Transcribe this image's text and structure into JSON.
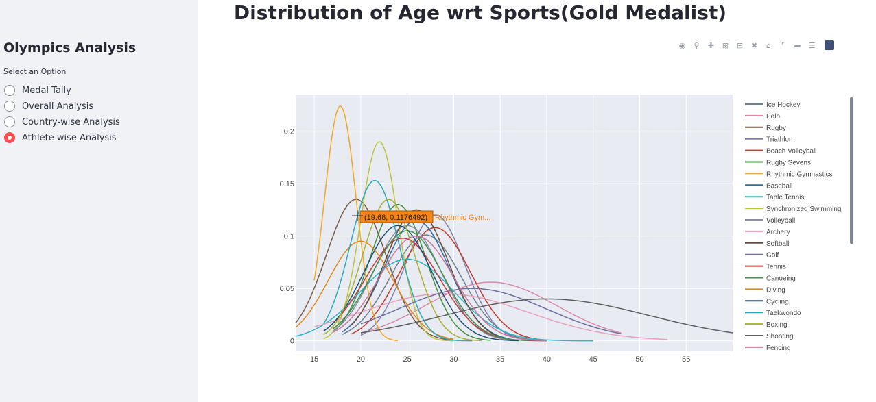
{
  "sidebar": {
    "title": "Olympics Analysis",
    "radio_label": "Select an Option",
    "options": [
      {
        "label": "Medal Tally",
        "selected": false
      },
      {
        "label": "Overall Analysis",
        "selected": false
      },
      {
        "label": "Country-wise Analysis",
        "selected": false
      },
      {
        "label": "Athlete wise Analysis",
        "selected": true
      }
    ]
  },
  "main": {
    "title": "Distribution of Age wrt Sports(Gold Medalist)"
  },
  "modebar": [
    "camera-icon",
    "zoom-icon",
    "pan-icon",
    "zoom-in-icon",
    "zoom-out-icon",
    "autoscale-icon",
    "reset-axes-icon",
    "spike-lines-icon",
    "hover-closest-icon",
    "hover-compare-icon",
    "plotly-logo-icon"
  ],
  "hover": {
    "value_text": "(19.68, 0.1176492)",
    "series_text": "Rhythmic Gym...",
    "bg_color": "#f58518",
    "text_color": "#ff7f0e"
  },
  "chart_data": {
    "type": "line",
    "title": "Distribution of Age wrt Sports(Gold Medalist)",
    "xlabel": "",
    "ylabel": "",
    "xlim": [
      13,
      60
    ],
    "ylim": [
      -0.01,
      0.235
    ],
    "x_ticks": [
      15,
      20,
      25,
      30,
      35,
      40,
      45,
      50,
      55
    ],
    "y_ticks": [
      {
        "value": 0,
        "label": "0"
      },
      {
        "value": 0.05,
        "label": "0.05"
      },
      {
        "value": 0.1,
        "label": "0.1"
      },
      {
        "value": 0.15,
        "label": "0.15"
      },
      {
        "value": 0.2,
        "label": "0.2"
      }
    ],
    "grid": true,
    "legend_position": "right",
    "series": [
      {
        "name": "Ice Hockey",
        "color": "#6f7f8f",
        "mu": 27,
        "sigma": 3.8,
        "peak": 0.101,
        "x0": 18,
        "x1": 39
      },
      {
        "name": "Polo",
        "color": "#d98aa8",
        "mu": 34,
        "sigma": 7,
        "peak": 0.056,
        "x0": 20,
        "x1": 48
      },
      {
        "name": "Rugby",
        "color": "#7a5a44",
        "mu": 19.5,
        "sigma": 3.2,
        "peak": 0.135,
        "x0": 13,
        "x1": 31
      },
      {
        "name": "Triathlon",
        "color": "#7f7fa8",
        "mu": 28,
        "sigma": 3.2,
        "peak": 0.12,
        "x0": 20,
        "x1": 38
      },
      {
        "name": "Beach Volleyball",
        "color": "#c0392b",
        "mu": 28,
        "sigma": 3.8,
        "peak": 0.108,
        "x0": 19,
        "x1": 40
      },
      {
        "name": "Rugby Sevens",
        "color": "#3d8f3d",
        "mu": 24,
        "sigma": 3,
        "peak": 0.13,
        "x0": 17,
        "x1": 34
      },
      {
        "name": "Rhythmic Gymnastics",
        "color": "#f5a623",
        "mu": 17.8,
        "sigma": 1.7,
        "peak": 0.224,
        "x0": 15,
        "x1": 24
      },
      {
        "name": "Baseball",
        "color": "#2e6da4",
        "mu": 26,
        "sigma": 3.5,
        "peak": 0.115,
        "x0": 18,
        "x1": 36
      },
      {
        "name": "Table Tennis",
        "color": "#2bb5c8",
        "mu": 25,
        "sigma": 5,
        "peak": 0.078,
        "x0": 13,
        "x1": 45
      },
      {
        "name": "Synchronized Swimming",
        "color": "#bcc33a",
        "mu": 22,
        "sigma": 2,
        "peak": 0.19,
        "x0": 16,
        "x1": 30
      },
      {
        "name": "Volleyball",
        "color": "#8a8aa0",
        "mu": 25,
        "sigma": 3.6,
        "peak": 0.11,
        "x0": 17,
        "x1": 37
      },
      {
        "name": "Archery",
        "color": "#e8a0c0",
        "mu": 29,
        "sigma": 9,
        "peak": 0.045,
        "x0": 15,
        "x1": 53
      },
      {
        "name": "Softball",
        "color": "#6b4a3a",
        "mu": 26,
        "sigma": 3.4,
        "peak": 0.125,
        "x0": 19,
        "x1": 35
      },
      {
        "name": "Golf",
        "color": "#7070a0",
        "mu": 32,
        "sigma": 8,
        "peak": 0.05,
        "x0": 20,
        "x1": 48
      },
      {
        "name": "Tennis",
        "color": "#c03a3a",
        "mu": 24.5,
        "sigma": 4,
        "peak": 0.098,
        "x0": 17,
        "x1": 40
      },
      {
        "name": "Canoeing",
        "color": "#3f8f50",
        "mu": 25,
        "sigma": 3.8,
        "peak": 0.105,
        "x0": 17,
        "x1": 38
      },
      {
        "name": "Diving",
        "color": "#e08a1e",
        "mu": 20,
        "sigma": 3.5,
        "peak": 0.095,
        "x0": 13,
        "x1": 30
      },
      {
        "name": "Cycling",
        "color": "#1f4f73",
        "mu": 24,
        "sigma": 3.6,
        "peak": 0.11,
        "x0": 16,
        "x1": 37
      },
      {
        "name": "Taekwondo",
        "color": "#2aa8b8",
        "mu": 21.5,
        "sigma": 2.6,
        "peak": 0.153,
        "x0": 16,
        "x1": 32
      },
      {
        "name": "Boxing",
        "color": "#a8b030",
        "mu": 23,
        "sigma": 2.8,
        "peak": 0.135,
        "x0": 16,
        "x1": 33
      },
      {
        "name": "Shooting",
        "color": "#5f5f5f",
        "mu": 40,
        "sigma": 11,
        "peak": 0.04,
        "x0": 20,
        "x1": 60
      },
      {
        "name": "Fencing",
        "color": "#c7789a",
        "mu": 26,
        "sigma": 4,
        "peak": 0.1,
        "x0": 17,
        "x1": 40
      }
    ]
  }
}
